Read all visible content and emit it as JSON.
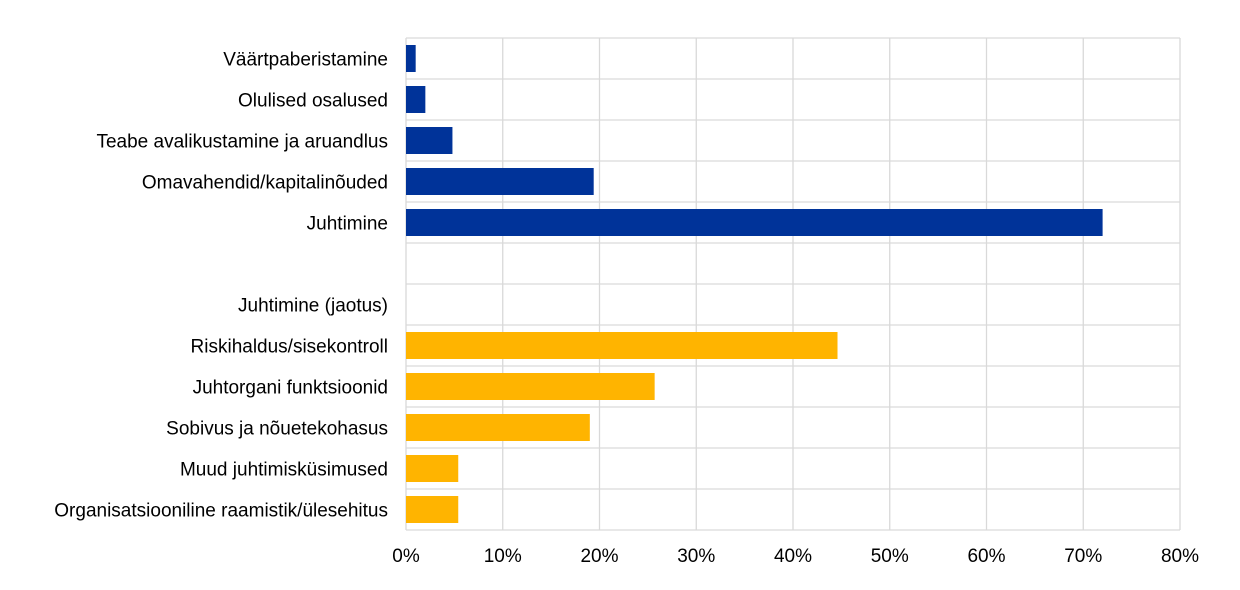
{
  "chart_data": {
    "type": "bar",
    "orientation": "horizontal",
    "categories": [
      "Väärtpaberistamine",
      "Olulised osalused",
      "Teabe avalikustamine ja aruandlus",
      "Omavahendid/kapitalinõuded",
      "Juhtimine",
      "",
      "Juhtimine (jaotus)",
      "Riskihaldus/sisekontroll",
      "Juhtorgani funktsioonid",
      "Sobivus ja nõuetekohasus",
      "Muud juhtimisküsimused",
      "Organisatsiooniline raamistik/ülesehitus"
    ],
    "values": [
      1,
      2,
      4.8,
      19.4,
      72,
      null,
      null,
      44.6,
      25.7,
      19,
      5.4,
      5.4
    ],
    "bar_colors": [
      "#003399",
      "#003399",
      "#003399",
      "#003399",
      "#003399",
      null,
      null,
      "#ffb400",
      "#ffb400",
      "#ffb400",
      "#ffb400",
      "#ffb400"
    ],
    "x_ticks": [
      "0%",
      "10%",
      "20%",
      "30%",
      "40%",
      "50%",
      "60%",
      "70%",
      "80%"
    ],
    "xlim": [
      0,
      80
    ],
    "unit": "%",
    "grid": true,
    "legend": "none",
    "colors": {
      "primary": "#003399",
      "secondary": "#ffb400",
      "grid": "#d9d9d9"
    }
  }
}
